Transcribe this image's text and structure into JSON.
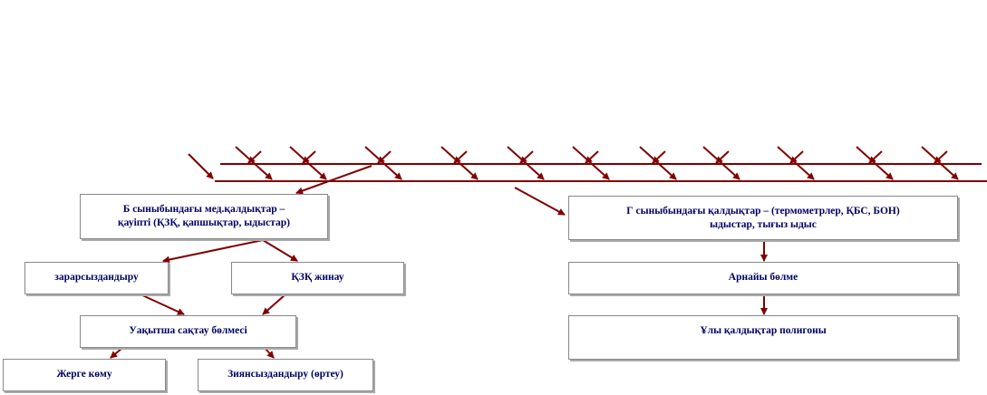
{
  "boxes": {
    "class_b": {
      "line1": "Б сыныбындағы мед.қалдықтар –",
      "line2": "қауіпті (ҚЗҚ, қапшықтар, ыдыстар)"
    },
    "class_g": {
      "line1": "Г сыныбындағы қалдықтар – (термометрлер, ҚБС, БОН)",
      "line2": "ыдыстар, тығыз ыдыс"
    },
    "disinfection": "зарарсыздандыру",
    "collection": "ҚЗҚ жинау",
    "temp_storage": "Уақытша сақтау бөлмесі",
    "burial": "Жерге көму",
    "incineration": "Зиянсыздандыру (өртеу)",
    "special_room": "Арнайы бөлме",
    "landfill": "Ұлы қалдықтар полигоны"
  }
}
